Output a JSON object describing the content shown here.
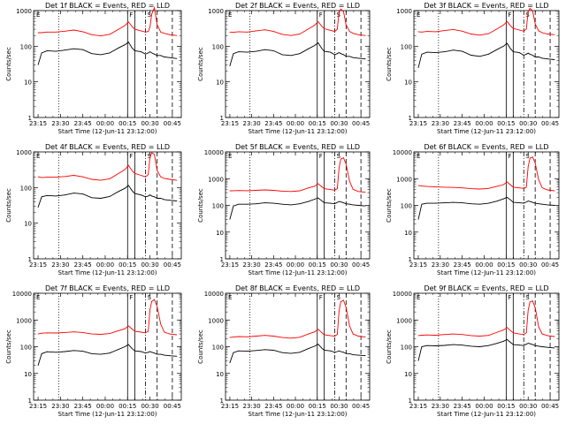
{
  "chart_data": {
    "type": "line",
    "ylabel": "Counts/sec",
    "xlabel": "Start Time (12-Jun-11 23:12:00)",
    "x_tick_labels": [
      "23:15",
      "23:30",
      "23:45",
      "00:00",
      "00:15",
      "00:30",
      "00:45"
    ],
    "x_tick_hours": [
      23.25,
      23.5,
      23.75,
      24.0,
      24.25,
      24.5,
      24.75
    ],
    "x_range_hours": [
      23.2,
      24.85
    ],
    "y_scale": "log",
    "grid": false,
    "series_colors": {
      "events": "#000000",
      "lld": "#ff0000"
    },
    "vertical_lines": {
      "dotted": 23.48,
      "solid": [
        24.25,
        24.33
      ],
      "dashed": [
        24.58,
        24.75
      ],
      "dash_dot": 24.45
    },
    "markers": {
      "left": "E",
      "middle": "F",
      "right": "S"
    },
    "panels": [
      {
        "title": "Det 1f BLACK = Events, RED = LLD",
        "ylim": [
          1,
          1000
        ],
        "y_tick_labels": [
          "1",
          "10",
          "100",
          "1000"
        ],
        "x": [
          23.25,
          23.29,
          23.35,
          23.45,
          23.55,
          23.65,
          23.75,
          23.85,
          23.95,
          24.05,
          24.15,
          24.22,
          24.26,
          24.3,
          24.33,
          24.4,
          24.45,
          24.48,
          24.5,
          24.52,
          24.55,
          24.58,
          24.62,
          24.66,
          24.72,
          24.8
        ],
        "events": [
          30,
          65,
          75,
          72,
          78,
          85,
          80,
          62,
          58,
          65,
          90,
          110,
          130,
          90,
          75,
          70,
          60,
          65,
          70,
          65,
          60,
          55,
          55,
          50,
          48,
          45
        ],
        "lld": [
          240,
          240,
          250,
          250,
          265,
          285,
          255,
          210,
          195,
          215,
          300,
          380,
          480,
          360,
          300,
          270,
          250,
          260,
          350,
          800,
          1200,
          400,
          250,
          230,
          210,
          200
        ]
      },
      {
        "title": "Det 2f BLACK = Events, RED = LLD",
        "ylim": [
          1,
          1000
        ],
        "y_tick_labels": [
          "1",
          "10",
          "100",
          "1000"
        ],
        "x": [
          23.25,
          23.29,
          23.35,
          23.45,
          23.55,
          23.65,
          23.75,
          23.85,
          23.95,
          24.05,
          24.15,
          24.22,
          24.26,
          24.3,
          24.33,
          24.4,
          24.45,
          24.48,
          24.5,
          24.52,
          24.55,
          24.58,
          24.62,
          24.66,
          24.72,
          24.8
        ],
        "events": [
          28,
          62,
          70,
          68,
          72,
          80,
          75,
          58,
          55,
          62,
          85,
          105,
          125,
          88,
          72,
          68,
          58,
          62,
          66,
          62,
          58,
          52,
          52,
          48,
          46,
          44
        ],
        "lld": [
          250,
          245,
          255,
          250,
          270,
          290,
          260,
          215,
          200,
          220,
          305,
          390,
          490,
          370,
          310,
          280,
          260,
          300,
          900,
          1100,
          950,
          400,
          260,
          230,
          210,
          200
        ]
      },
      {
        "title": "Det 3f BLACK = Events, RED = LLD",
        "ylim": [
          1,
          1000
        ],
        "y_tick_labels": [
          "1",
          "10",
          "100",
          "1000"
        ],
        "x": [
          23.25,
          23.29,
          23.35,
          23.45,
          23.55,
          23.65,
          23.75,
          23.85,
          23.95,
          24.05,
          24.15,
          24.22,
          24.26,
          24.3,
          24.33,
          24.4,
          24.45,
          24.48,
          24.5,
          24.52,
          24.55,
          24.58,
          24.62,
          24.66,
          24.72,
          24.8
        ],
        "events": [
          25,
          60,
          68,
          66,
          70,
          78,
          72,
          56,
          52,
          60,
          82,
          100,
          120,
          85,
          70,
          66,
          56,
          60,
          64,
          60,
          56,
          50,
          50,
          46,
          44,
          42
        ],
        "lld": [
          255,
          250,
          260,
          255,
          275,
          295,
          265,
          220,
          205,
          225,
          310,
          395,
          495,
          375,
          315,
          285,
          265,
          305,
          950,
          1150,
          1000,
          420,
          270,
          240,
          220,
          210
        ]
      },
      {
        "title": "Det 4f BLACK = Events, RED = LLD",
        "ylim": [
          1,
          1000
        ],
        "y_tick_labels": [
          "1",
          "10",
          "100",
          "1000"
        ],
        "x": [
          23.25,
          23.29,
          23.35,
          23.45,
          23.55,
          23.65,
          23.75,
          23.85,
          23.95,
          24.05,
          24.15,
          24.22,
          24.26,
          24.3,
          24.33,
          24.4,
          24.45,
          24.48,
          24.5,
          24.52,
          24.55,
          24.58,
          24.62,
          24.66,
          24.72,
          24.8
        ],
        "events": [
          28,
          55,
          60,
          58,
          62,
          70,
          66,
          52,
          50,
          56,
          78,
          95,
          115,
          82,
          68,
          62,
          55,
          58,
          62,
          58,
          55,
          50,
          50,
          46,
          44,
          42
        ],
        "lld": [
          200,
          190,
          195,
          195,
          205,
          220,
          200,
          170,
          160,
          175,
          250,
          320,
          420,
          300,
          250,
          220,
          200,
          230,
          700,
          950,
          850,
          300,
          200,
          180,
          170,
          160
        ]
      },
      {
        "title": "Det 5f BLACK = Events, RED = LLD",
        "ylim": [
          1,
          10000
        ],
        "y_tick_labels": [
          "1",
          "10",
          "100",
          "1000",
          "10000"
        ],
        "x": [
          23.25,
          23.29,
          23.35,
          23.45,
          23.55,
          23.65,
          23.75,
          23.85,
          23.95,
          24.05,
          24.15,
          24.22,
          24.26,
          24.3,
          24.33,
          24.4,
          24.45,
          24.48,
          24.5,
          24.52,
          24.55,
          24.58,
          24.62,
          24.66,
          24.72,
          24.8
        ],
        "events": [
          30,
          95,
          110,
          110,
          115,
          125,
          120,
          110,
          105,
          115,
          140,
          170,
          190,
          150,
          125,
          120,
          115,
          130,
          140,
          135,
          125,
          115,
          110,
          105,
          100,
          95
        ],
        "lld": [
          350,
          355,
          360,
          355,
          365,
          380,
          365,
          340,
          330,
          350,
          450,
          520,
          650,
          500,
          420,
          390,
          370,
          420,
          2500,
          5500,
          6000,
          3500,
          800,
          400,
          330,
          310
        ]
      },
      {
        "title": "Det 6f BLACK = Events, RED = LLD",
        "ylim": [
          1,
          10000
        ],
        "y_tick_labels": [
          "1",
          "10",
          "100",
          "1000",
          "10000"
        ],
        "x": [
          23.25,
          23.29,
          23.35,
          23.45,
          23.55,
          23.65,
          23.75,
          23.85,
          23.95,
          24.05,
          24.15,
          24.22,
          24.26,
          24.3,
          24.33,
          24.4,
          24.45,
          24.48,
          24.5,
          24.52,
          24.55,
          24.58,
          24.62,
          24.66,
          24.72,
          24.8
        ],
        "events": [
          30,
          110,
          120,
          120,
          125,
          130,
          125,
          115,
          110,
          120,
          145,
          175,
          200,
          160,
          130,
          125,
          120,
          135,
          145,
          140,
          130,
          120,
          115,
          110,
          105,
          100
        ],
        "lld": [
          550,
          530,
          510,
          490,
          480,
          470,
          450,
          420,
          410,
          430,
          520,
          600,
          750,
          580,
          480,
          450,
          430,
          480,
          2800,
          5800,
          6500,
          3800,
          900,
          460,
          380,
          350
        ]
      },
      {
        "title": "Det 7f BLACK = Events, RED = LLD",
        "ylim": [
          1,
          10000
        ],
        "y_tick_labels": [
          "1",
          "10",
          "100",
          "1000",
          "10000"
        ],
        "x": [
          23.25,
          23.29,
          23.35,
          23.45,
          23.55,
          23.65,
          23.75,
          23.85,
          23.95,
          24.05,
          24.15,
          24.22,
          24.26,
          24.3,
          24.33,
          24.4,
          24.45,
          24.48,
          24.5,
          24.52,
          24.55,
          24.58,
          24.62,
          24.66,
          24.72,
          24.8
        ],
        "events": [
          20,
          55,
          65,
          62,
          66,
          72,
          68,
          55,
          52,
          58,
          80,
          100,
          120,
          85,
          70,
          66,
          58,
          62,
          66,
          62,
          58,
          52,
          52,
          48,
          46,
          44
        ],
        "lld": [
          300,
          320,
          330,
          325,
          340,
          360,
          340,
          300,
          290,
          310,
          400,
          470,
          600,
          460,
          380,
          350,
          330,
          380,
          2400,
          5000,
          5800,
          3200,
          700,
          350,
          300,
          280
        ]
      },
      {
        "title": "Det 8f BLACK = Events, RED = LLD",
        "ylim": [
          1,
          10000
        ],
        "y_tick_labels": [
          "1",
          "10",
          "100",
          "1000",
          "10000"
        ],
        "x": [
          23.25,
          23.29,
          23.35,
          23.45,
          23.55,
          23.65,
          23.75,
          23.85,
          23.95,
          24.05,
          24.15,
          24.22,
          24.26,
          24.3,
          24.33,
          24.4,
          24.45,
          24.48,
          24.5,
          24.52,
          24.55,
          24.58,
          24.62,
          24.66,
          24.72,
          24.8
        ],
        "events": [
          25,
          60,
          70,
          68,
          72,
          78,
          74,
          60,
          56,
          62,
          85,
          105,
          125,
          90,
          74,
          70,
          62,
          66,
          70,
          66,
          62,
          56,
          55,
          50,
          48,
          46
        ],
        "lld": [
          220,
          230,
          240,
          235,
          250,
          265,
          250,
          220,
          210,
          225,
          300,
          360,
          450,
          340,
          280,
          260,
          245,
          290,
          2200,
          4800,
          5500,
          3000,
          600,
          300,
          250,
          230
        ]
      },
      {
        "title": "Det 9f BLACK = Events, RED = LLD",
        "ylim": [
          1,
          10000
        ],
        "y_tick_labels": [
          "1",
          "10",
          "100",
          "1000",
          "10000"
        ],
        "x": [
          23.25,
          23.29,
          23.35,
          23.45,
          23.55,
          23.65,
          23.75,
          23.85,
          23.95,
          24.05,
          24.15,
          24.22,
          24.26,
          24.3,
          24.33,
          24.4,
          24.45,
          24.48,
          24.5,
          24.52,
          24.55,
          24.58,
          24.62,
          24.66,
          24.72,
          24.8
        ],
        "events": [
          30,
          100,
          110,
          108,
          112,
          120,
          115,
          105,
          100,
          110,
          135,
          160,
          185,
          145,
          120,
          115,
          110,
          125,
          135,
          130,
          120,
          110,
          105,
          100,
          95,
          90
        ],
        "lld": [
          260,
          270,
          275,
          270,
          285,
          300,
          285,
          260,
          250,
          265,
          350,
          420,
          520,
          400,
          330,
          300,
          285,
          330,
          2300,
          4700,
          5200,
          2900,
          550,
          300,
          260,
          240
        ]
      }
    ]
  }
}
